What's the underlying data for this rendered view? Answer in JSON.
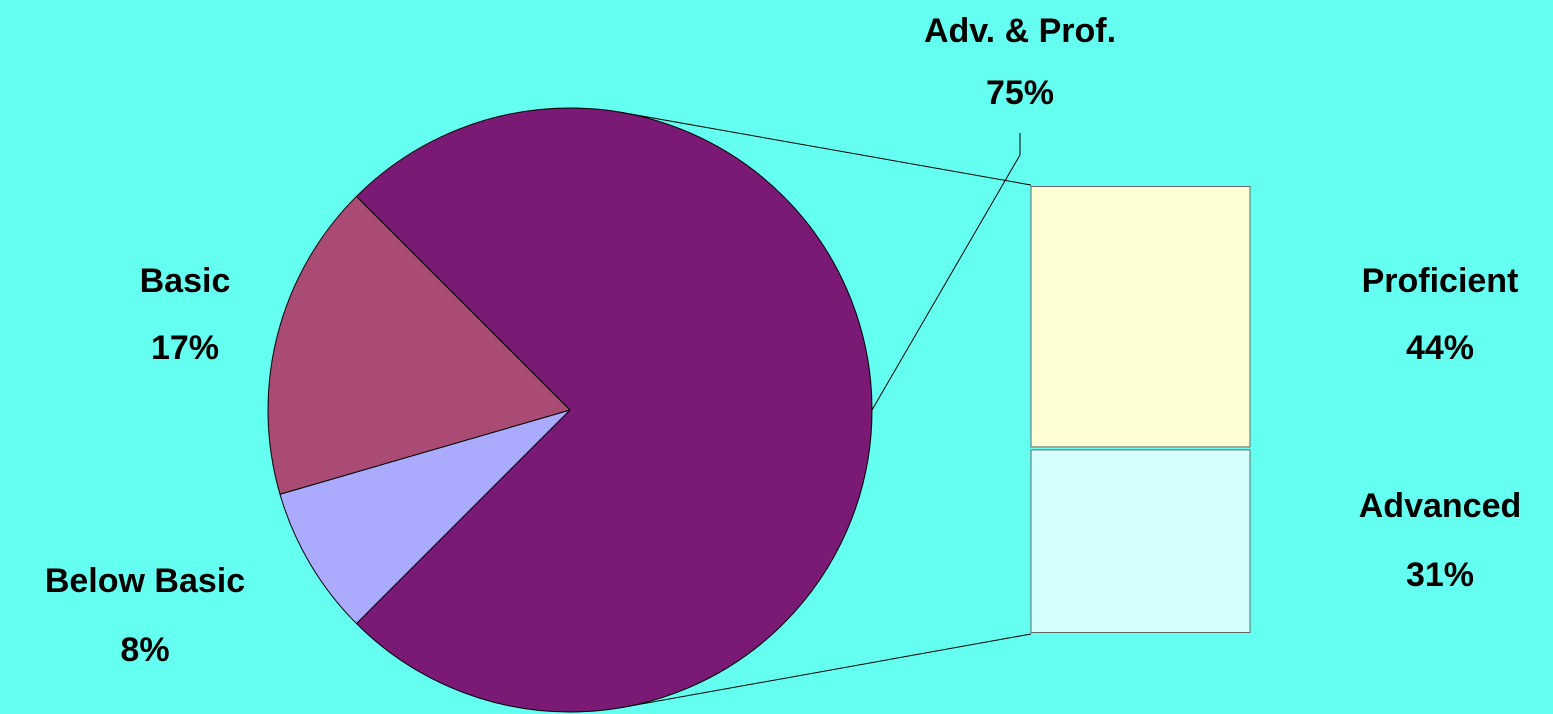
{
  "chart_data": {
    "type": "bar-of-pie",
    "categories": [
      "Adv. & Prof.",
      "Below Basic",
      "Basic"
    ],
    "values": [
      75,
      8,
      17
    ],
    "value_labels": [
      "75%",
      "8%",
      "17%"
    ],
    "colors": [
      "#7b1a74",
      "#aaaaff",
      "#a94b74"
    ],
    "breakdown": {
      "categories": [
        "Proficient",
        "Advanced"
      ],
      "values": [
        44,
        31
      ],
      "value_labels": [
        "44%",
        "31%"
      ],
      "colors": [
        "#ffffd6",
        "#d4ffff"
      ]
    }
  }
}
